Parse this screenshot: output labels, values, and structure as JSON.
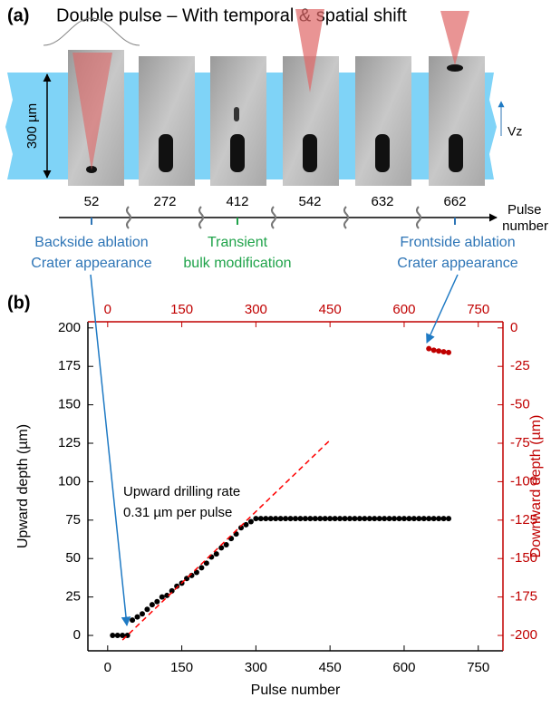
{
  "panel_a": {
    "label": "(a)",
    "title": "Double pulse – With temporal & spatial shift",
    "scale_label": "300 µm",
    "velocity_label": "Vz",
    "pulse_numbers": [
      52,
      272,
      412,
      542,
      632,
      662
    ],
    "axis_label": [
      "Pulse",
      "number"
    ],
    "annotations": [
      {
        "lines": [
          "Backside ablation",
          "Crater appearance"
        ],
        "color": "#2e75b6"
      },
      {
        "lines": [
          "Transient",
          "bulk modification"
        ],
        "color": "#1fa34a"
      },
      {
        "lines": [
          "Frontside ablation",
          "Crater appearance"
        ],
        "color": "#2e75b6"
      }
    ]
  },
  "panel_b_label": "(b)",
  "chart_data": {
    "type": "scatter",
    "x_label": "Pulse number",
    "y_label": "Upward depth (µm)",
    "y2_label": "Downward depth (µm)",
    "annotation": [
      "Upward drilling rate",
      "0.31 µm per pulse"
    ],
    "xlim": [
      -40,
      800
    ],
    "xticks": [
      0,
      150,
      300,
      450,
      600,
      750
    ],
    "x2lim": [
      -40,
      800
    ],
    "x2ticks": [
      0,
      150,
      300,
      450,
      600,
      750
    ],
    "ylim": [
      -10,
      204
    ],
    "yticks": [
      0,
      25,
      50,
      75,
      100,
      125,
      150,
      175,
      200
    ],
    "y2lim": [
      -210,
      4
    ],
    "y2ticks": [
      0,
      -25,
      -50,
      -75,
      -100,
      -125,
      -150,
      -175,
      -200
    ],
    "grid": false,
    "series": [
      {
        "color": "#000000",
        "x": [
          10,
          20,
          30,
          40,
          50,
          60,
          70,
          80,
          90,
          100,
          110,
          120,
          130,
          140,
          150,
          160,
          170,
          180,
          190,
          200,
          210,
          220,
          230,
          240,
          250,
          260,
          270,
          280,
          290,
          300,
          310,
          320,
          330,
          340,
          350,
          360,
          370,
          380,
          390,
          400,
          410,
          420,
          430,
          440,
          450,
          460,
          470,
          480,
          490,
          500,
          510,
          520,
          530,
          540,
          550,
          560,
          570,
          580,
          590,
          600,
          610,
          620,
          630,
          640,
          650,
          660,
          670,
          680,
          690
        ],
        "values": [
          0,
          0,
          0,
          0,
          10,
          12,
          14,
          17,
          20,
          22,
          25,
          26,
          29,
          32,
          34,
          37,
          39,
          41,
          44,
          47,
          51,
          53,
          57,
          59,
          63,
          66,
          70,
          72,
          74,
          76,
          76,
          76,
          76,
          76,
          76,
          76,
          76,
          76,
          76,
          76,
          76,
          76,
          76,
          76,
          76,
          76,
          76,
          76,
          76,
          76,
          76,
          76,
          76,
          76,
          76,
          76,
          76,
          76,
          76,
          76,
          76,
          76,
          76,
          76,
          76,
          76,
          76,
          76,
          76
        ]
      },
      {
        "color": "#c00000",
        "axis": "y2",
        "x": [
          650,
          660,
          670,
          680,
          690
        ],
        "values": [
          -13.5,
          -14.5,
          -15,
          -15.5,
          -16
        ]
      },
      {
        "color": "#ff0000",
        "style": "dashed",
        "x": [
          30,
          450
        ],
        "values": [
          -3,
          127
        ]
      }
    ]
  }
}
